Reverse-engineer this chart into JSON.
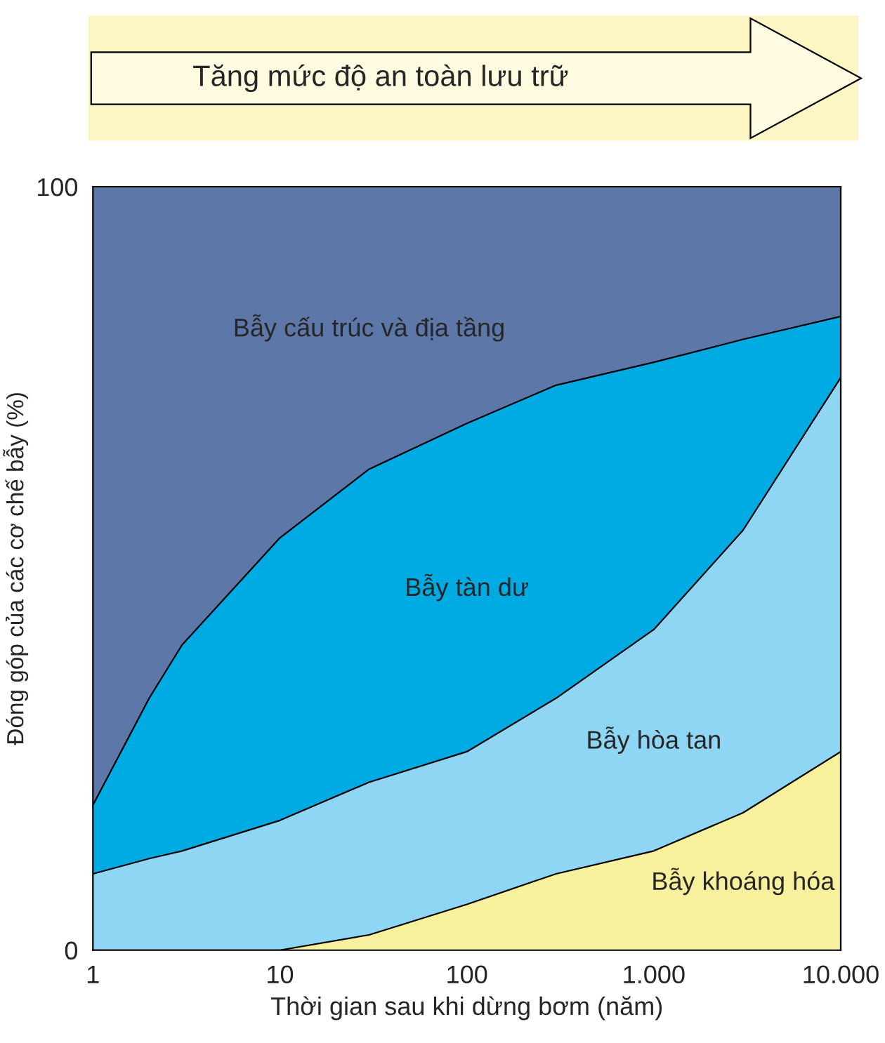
{
  "chart_data": {
    "type": "area",
    "stacked": true,
    "log": "x",
    "x": [
      1,
      2,
      3,
      10,
      30,
      100,
      300,
      1000,
      3000,
      10000
    ],
    "series": [
      {
        "name": "Bẫy khoáng hóa",
        "color": "#f7f09c",
        "values": [
          0,
          0,
          0,
          0,
          2,
          6,
          10,
          13,
          18,
          26
        ]
      },
      {
        "name": "Bẫy hòa tan",
        "color": "#8fd5f4",
        "values": [
          10,
          12,
          13,
          17,
          20,
          20,
          23,
          29,
          37,
          49
        ]
      },
      {
        "name": "Bẫy tàn dư",
        "color": "#00abe4",
        "values": [
          9,
          21,
          27,
          37,
          41,
          43,
          41,
          35,
          25,
          8
        ]
      },
      {
        "name": "Bẫy cấu trúc và địa tầng",
        "color": "#5d77a9",
        "values": [
          81,
          67,
          60,
          46,
          37,
          31,
          26,
          23,
          20,
          17
        ]
      }
    ],
    "xlim": [
      1,
      10000
    ],
    "xticks": [
      1,
      10,
      100,
      {
        "value": 1000,
        "label": "1.000"
      },
      {
        "value": 10000,
        "label": "10.000"
      }
    ],
    "ylim": [
      0,
      100
    ],
    "yticks": [
      0,
      100
    ],
    "xlabel": "Thời gian sau khi dừng bơm (năm)",
    "ylabel": "Đóng góp của các cơ chế bẫy (%)",
    "annotations": [
      "Tăng mức độ an toàn lưu trữ"
    ]
  }
}
